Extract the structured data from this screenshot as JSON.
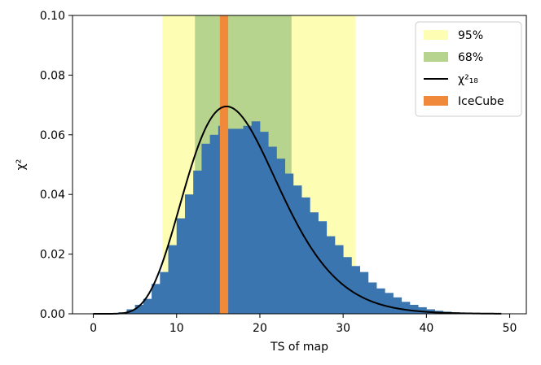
{
  "chart_data": {
    "type": "bar",
    "title": "",
    "xlabel": "TS of map",
    "ylabel": "χ²",
    "xlim": [
      -2.5,
      52
    ],
    "ylim": [
      0,
      0.1
    ],
    "x_ticks": [
      "0",
      "10",
      "20",
      "30",
      "40",
      "50"
    ],
    "y_ticks": [
      "0.00",
      "0.02",
      "0.04",
      "0.06",
      "0.08",
      "0.10"
    ],
    "grid": false,
    "legend_position": "top-right",
    "histogram": {
      "name": "",
      "color": "#3a75b0",
      "bin_width": 1,
      "x_start": 0,
      "values": [
        0.0,
        0.0,
        0.0,
        0.0005,
        0.0015,
        0.003,
        0.005,
        0.01,
        0.014,
        0.023,
        0.032,
        0.04,
        0.048,
        0.057,
        0.06,
        0.063,
        0.062,
        0.062,
        0.063,
        0.0645,
        0.061,
        0.056,
        0.052,
        0.047,
        0.043,
        0.039,
        0.034,
        0.031,
        0.026,
        0.023,
        0.019,
        0.016,
        0.014,
        0.0105,
        0.0085,
        0.007,
        0.0055,
        0.004,
        0.003,
        0.0022,
        0.0015,
        0.001,
        0.0007,
        0.0005,
        0.0003,
        0.0002,
        0.0001,
        0.0001
      ]
    },
    "bands": [
      {
        "name": "95%",
        "from": 8.3,
        "to": 31.5,
        "color": "#fdfdb3"
      },
      {
        "name": "68%",
        "from": 12.2,
        "to": 23.8,
        "color": "#b6d48e"
      }
    ],
    "marker": {
      "name": "IceCube",
      "from": 15.2,
      "to": 16.2,
      "color": "#f0893a"
    },
    "curve": {
      "name": "χ²₁₈",
      "color": "#000000",
      "dof": 18,
      "peak_y": 0.0695,
      "peak_x": 16,
      "x_range": [
        0,
        49
      ]
    },
    "legend": [
      {
        "label": "95%",
        "kind": "patch",
        "color": "#fdfdb3"
      },
      {
        "label": "68%",
        "kind": "patch",
        "color": "#b6d48e"
      },
      {
        "label": "χ²₁₈",
        "kind": "line",
        "color": "#000000"
      },
      {
        "label": "IceCube",
        "kind": "patch",
        "color": "#f0893a"
      }
    ]
  }
}
